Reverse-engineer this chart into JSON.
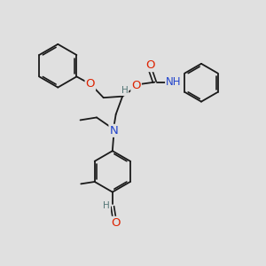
{
  "background_color": "#e0e0e0",
  "bond_color": "#1a1a1a",
  "atom_colors": {
    "O": "#dd2200",
    "N": "#2244cc",
    "H": "#557777",
    "C": "#1a1a1a"
  },
  "font_size_atom": 8.5,
  "fig_width": 3.0,
  "fig_height": 3.0,
  "dpi": 100
}
